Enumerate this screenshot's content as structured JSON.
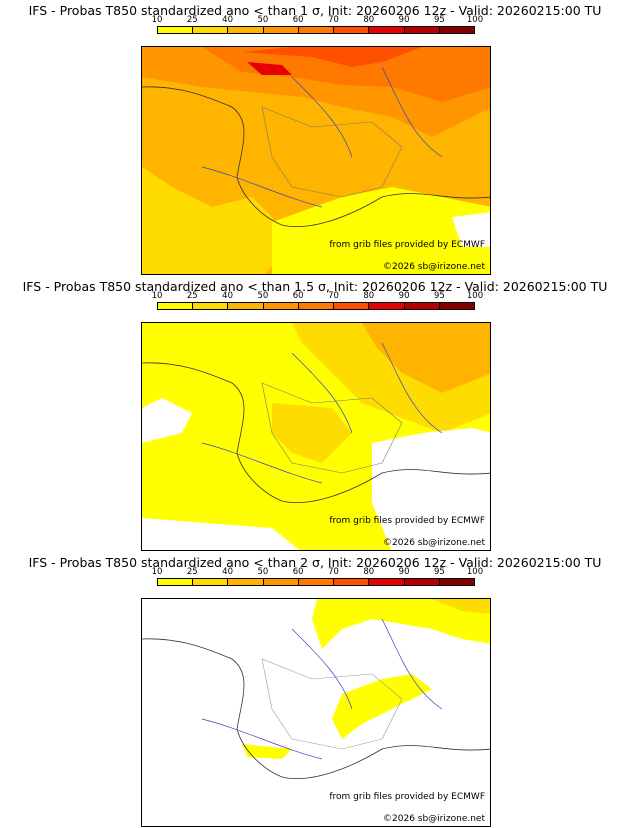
{
  "colorbar": {
    "ticks": [
      "10",
      "25",
      "40",
      "50",
      "60",
      "70",
      "80",
      "90",
      "95",
      "100"
    ],
    "colors": [
      "#ffff00",
      "#ffdc00",
      "#ffb400",
      "#ff9600",
      "#ff7800",
      "#ff5000",
      "#e60000",
      "#b40000",
      "#820000"
    ]
  },
  "credits": {
    "source": "from grib files provided by ECMWF",
    "copyright": "©2026 sb@irizone.net"
  },
  "panels": [
    {
      "title": "IFS - Probas T850  standardized ano < than 1 σ, Init: 20260206 12z - Valid: 20260215:00 TU",
      "coverage": "high"
    },
    {
      "title": "IFS - Probas T850  standardized ano < than 1.5 σ, Init: 20260206 12z - Valid: 20260215:00 TU",
      "coverage": "medium"
    },
    {
      "title": "IFS - Probas T850  standardized ano < than 2 σ, Init: 20260206 12z - Valid: 20260215:00 TU",
      "coverage": "low"
    }
  ]
}
